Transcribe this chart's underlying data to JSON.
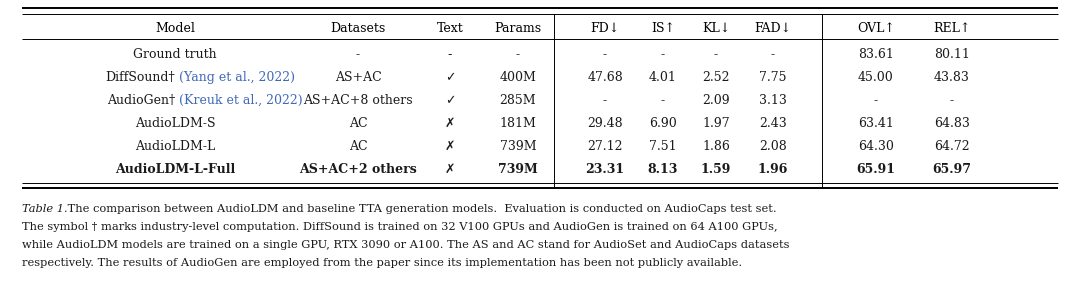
{
  "col_headers": [
    "Model",
    "Datasets",
    "Text",
    "Params",
    "FD↓",
    "IS↑",
    "KL↓",
    "FAD↓",
    "OVL↑",
    "REL↑"
  ],
  "rows": [
    {
      "model": "Ground truth",
      "model_dagger": false,
      "model_cite": "",
      "datasets": "-",
      "text_sym": "-",
      "params": "-",
      "fd": "-",
      "is_v": "-",
      "kl": "-",
      "fad": "-",
      "ovl": "83.61",
      "rel": "80.11",
      "bold": false
    },
    {
      "model": "DiffSound",
      "model_dagger": true,
      "model_cite": "(Yang et al., 2022)",
      "datasets": "AS+AC",
      "text_sym": "✓",
      "params": "400M",
      "fd": "47.68",
      "is_v": "4.01",
      "kl": "2.52",
      "fad": "7.75",
      "ovl": "45.00",
      "rel": "43.83",
      "bold": false
    },
    {
      "model": "AudioGen",
      "model_dagger": true,
      "model_cite": "(Kreuk et al., 2022)",
      "datasets": "AS+AC+8 others",
      "text_sym": "✓",
      "params": "285M",
      "fd": "-",
      "is_v": "-",
      "kl": "2.09",
      "fad": "3.13",
      "ovl": "-",
      "rel": "-",
      "bold": false
    },
    {
      "model": "AudioLDM-S",
      "model_dagger": false,
      "model_cite": "",
      "datasets": "AC",
      "text_sym": "✗",
      "params": "181M",
      "fd": "29.48",
      "is_v": "6.90",
      "kl": "1.97",
      "fad": "2.43",
      "ovl": "63.41",
      "rel": "64.83",
      "bold": false
    },
    {
      "model": "AudioLDM-L",
      "model_dagger": false,
      "model_cite": "",
      "datasets": "AC",
      "text_sym": "✗",
      "params": "739M",
      "fd": "27.12",
      "is_v": "7.51",
      "kl": "1.86",
      "fad": "2.08",
      "ovl": "64.30",
      "rel": "64.72",
      "bold": false
    },
    {
      "model": "AudioLDM-L-Full",
      "model_dagger": false,
      "model_cite": "",
      "datasets": "AS+AC+2 others",
      "text_sym": "✗",
      "params": "739M",
      "fd": "23.31",
      "is_v": "8.13",
      "kl": "1.59",
      "fad": "1.96",
      "ovl": "65.91",
      "rel": "65.97",
      "bold": true
    }
  ],
  "caption_italic": "Table 1.",
  "caption_rest": " The comparison between AudioLDM and baseline TTA generation models.  Evaluation is conducted on AudioCaps test set.",
  "caption_line2": "The symbol † marks industry-level computation. DiffSound is trained on 32 V100 GPUs and AudioGen is trained on 64 A100 GPUs,",
  "caption_line3": "while AudioLDM models are trained on a single GPU, RTX 3090 or A100. The AS and AC stand for AudioSet and AudioCaps datasets",
  "caption_line4": "respectively. The results of AudioGen are employed from the paper since its implementation has been not publicly available.",
  "blue_color": "#4169b8",
  "fontsize_table": 9.0,
  "fontsize_caption": 8.2,
  "bg_color": "#ffffff",
  "text_color": "#1a1a1a"
}
